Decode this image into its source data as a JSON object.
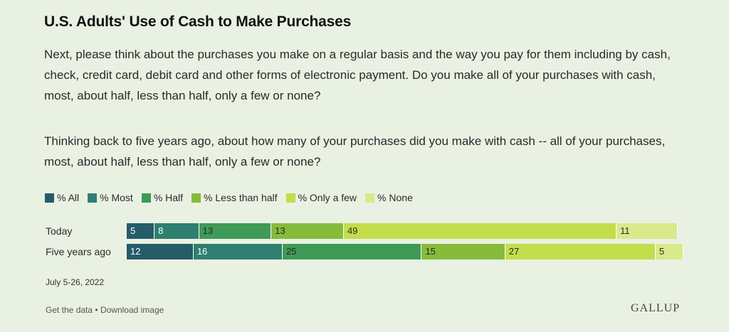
{
  "title": "U.S. Adults' Use of Cash to Make Purchases",
  "question1": "Next, please think about the purchases you make on a regular basis and the way you pay for them including by cash, check, credit card, debit card and other forms of electronic payment. Do you make all of your purchases with cash, most, about half, less than half, only a few or none?",
  "question2": "Thinking back to five years ago, about how many of your purchases did you make with cash -- all of your purchases, most, about half, less than half, only a few or none?",
  "date": "July 5-26, 2022",
  "footer": {
    "get_data": "Get the data",
    "separator": "•",
    "download": "Download image"
  },
  "brand": "GALLUP",
  "colors": {
    "background": "#e9f1e3",
    "series": [
      "#255c69",
      "#2f7f70",
      "#3e9a56",
      "#87bb3c",
      "#c4dd4a",
      "#d9e98b"
    ],
    "label_light": "#ffffff",
    "label_dark": "#2a2a2a"
  },
  "chart_data": {
    "type": "bar",
    "orientation": "horizontal",
    "stacked": true,
    "categories": [
      "Today",
      "Five years ago"
    ],
    "series": [
      {
        "name": "% All",
        "values": [
          5,
          12
        ]
      },
      {
        "name": "% Most",
        "values": [
          8,
          16
        ]
      },
      {
        "name": "% Half",
        "values": [
          13,
          25
        ]
      },
      {
        "name": "% Less than half",
        "values": [
          13,
          15
        ]
      },
      {
        "name": "% Only a few",
        "values": [
          49,
          27
        ]
      },
      {
        "name": "% None",
        "values": [
          11,
          5
        ]
      }
    ],
    "legend": "top-left",
    "grid": false
  }
}
